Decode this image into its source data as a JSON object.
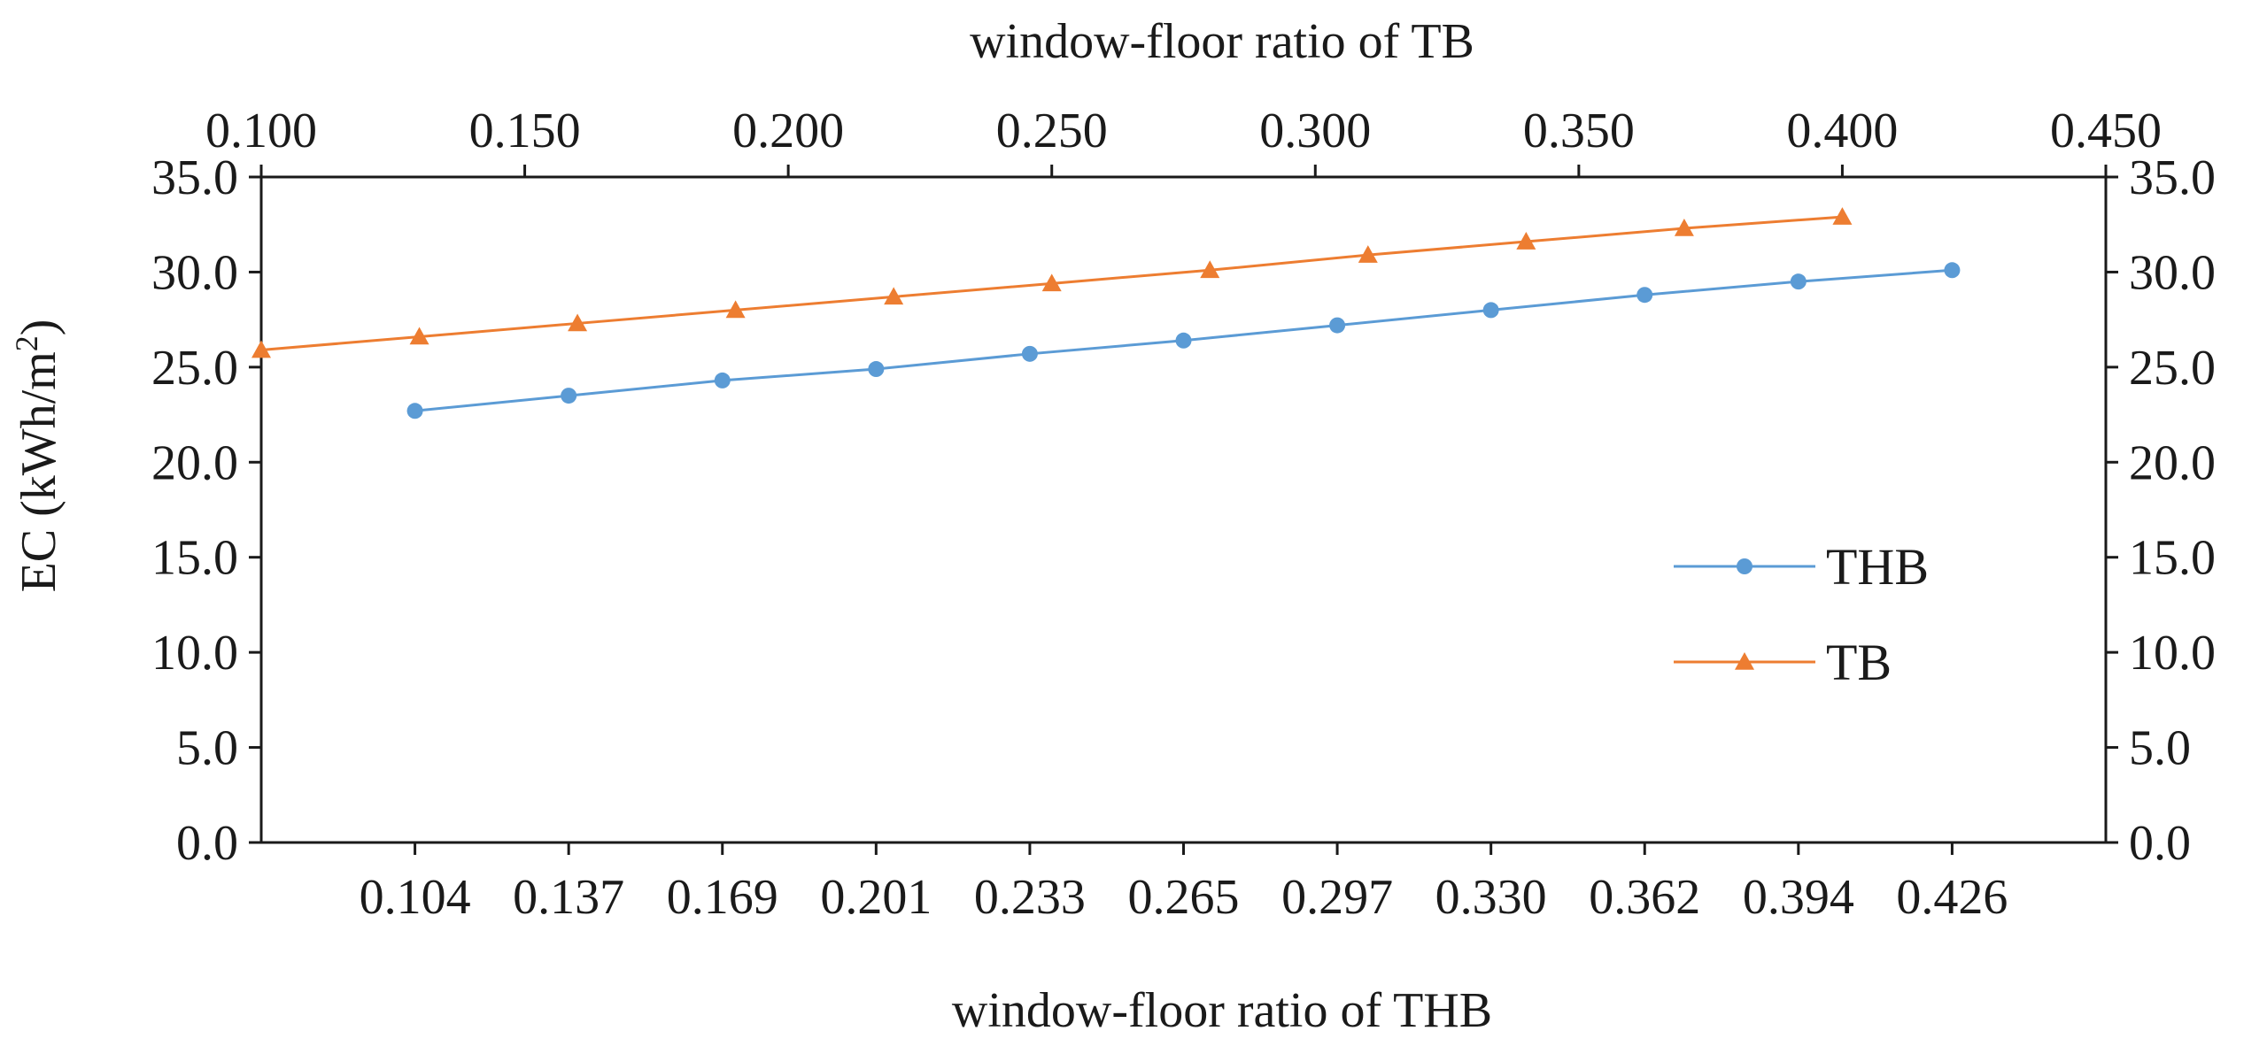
{
  "chart_data": {
    "type": "line",
    "top_axis": {
      "title": "window-floor ratio of TB",
      "range": [
        0.1,
        0.45
      ],
      "ticks": [
        "0.100",
        "0.150",
        "0.200",
        "0.250",
        "0.300",
        "0.350",
        "0.400",
        "0.450"
      ]
    },
    "bottom_axis": {
      "title": "window-floor ratio of THB",
      "categories": [
        "0.104",
        "0.137",
        "0.169",
        "0.201",
        "0.233",
        "0.265",
        "0.297",
        "0.330",
        "0.362",
        "0.394",
        "0.426"
      ]
    },
    "left_axis": {
      "title": "EC (kWh/m",
      "title_sup": "2",
      "title_end": ")",
      "range": [
        0,
        35
      ],
      "ticks": [
        "0.0",
        "5.0",
        "10.0",
        "15.0",
        "20.0",
        "25.0",
        "30.0",
        "35.0"
      ]
    },
    "right_axis": {
      "range": [
        0,
        35
      ],
      "ticks": [
        "0.0",
        "5.0",
        "10.0",
        "15.0",
        "20.0",
        "25.0",
        "30.0",
        "35.0"
      ]
    },
    "series": [
      {
        "name": "THB",
        "axis": "bottom",
        "color": "#5b9bd5",
        "marker": "circle",
        "values": [
          22.7,
          23.5,
          24.3,
          24.9,
          25.7,
          26.4,
          27.2,
          28.0,
          28.8,
          29.5,
          30.1
        ]
      },
      {
        "name": "TB",
        "axis": "top",
        "x": [
          0.1,
          0.13,
          0.16,
          0.19,
          0.22,
          0.25,
          0.28,
          0.31,
          0.34,
          0.37,
          0.4
        ],
        "color": "#ed7d31",
        "marker": "triangle",
        "values": [
          25.9,
          26.6,
          27.3,
          28.0,
          28.7,
          29.4,
          30.1,
          30.9,
          31.6,
          32.3,
          32.9
        ]
      }
    ],
    "legend_position": "right-middle",
    "grid": false
  }
}
